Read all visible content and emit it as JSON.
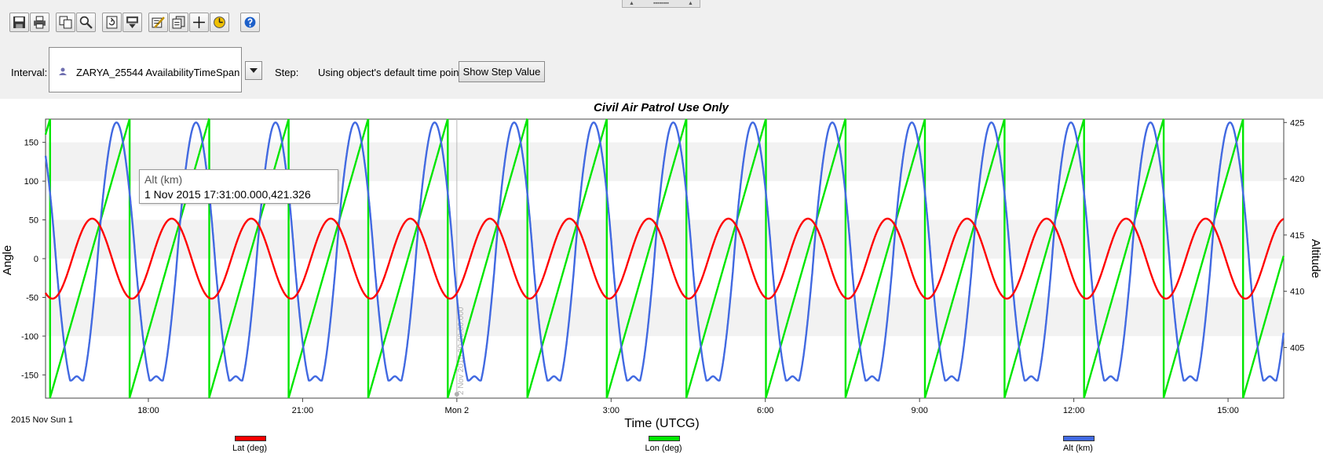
{
  "splitter": {
    "left_arrow": "▲",
    "dots": "▪▪▪▪▪▪▪▪",
    "right_arrow": "▲"
  },
  "toolbar": {
    "buttons": [
      {
        "name": "save-icon"
      },
      {
        "name": "print-icon"
      },
      {
        "name": "copy-icon"
      },
      {
        "name": "zoom-icon"
      },
      {
        "name": "refresh-icon"
      },
      {
        "name": "export-icon"
      },
      {
        "name": "properties-icon"
      },
      {
        "name": "report-icon"
      },
      {
        "name": "crosshair-icon"
      },
      {
        "name": "animation-icon"
      },
      {
        "name": "help-icon"
      }
    ]
  },
  "interval": {
    "label": "Interval:",
    "value": "ZARYA_25544 AvailabilityTimeSpan"
  },
  "step": {
    "label": "Step:",
    "value": "Using object's default time points",
    "button": "Show Step Value"
  },
  "tooltip": {
    "title": "Alt (km)",
    "value": "1 Nov 2015 17:31:00.000,421.326"
  },
  "chart_data": {
    "type": "line",
    "title": "Civil Air Patrol Use Only",
    "xlabel": "Time (UTCG)",
    "ylabel": "Angle",
    "y2label": "Altitude",
    "date_label": "2015 Nov Sun 1",
    "x_range": [
      "2015-11-01 16:00",
      "2015-11-02 16:05"
    ],
    "x_ticks": [
      "18:00",
      "21:00",
      "Mon 2",
      "3:00",
      "6:00",
      "9:00",
      "12:00",
      "15:00"
    ],
    "ylim": [
      -180,
      180
    ],
    "y_ticks": [
      "150",
      "100",
      "50",
      "0",
      "-50",
      "-100",
      "-150"
    ],
    "y2lim": [
      400.5,
      425.3
    ],
    "y2_ticks": [
      "425",
      "420",
      "415",
      "410",
      "405"
    ],
    "orbital_period_hours": 1.547,
    "marker_label": "2 Nov 2015 00:00:00.000",
    "series": [
      {
        "name": "Lat (deg)",
        "color": "#ff0000",
        "axis": "left",
        "amplitude": 51.6
      },
      {
        "name": "Lon (deg)",
        "color": "#00e600",
        "axis": "left",
        "range": [
          -180,
          180
        ]
      },
      {
        "name": "Alt (km)",
        "color": "#4169e1",
        "axis": "right",
        "range": [
          401,
          425
        ]
      }
    ]
  }
}
